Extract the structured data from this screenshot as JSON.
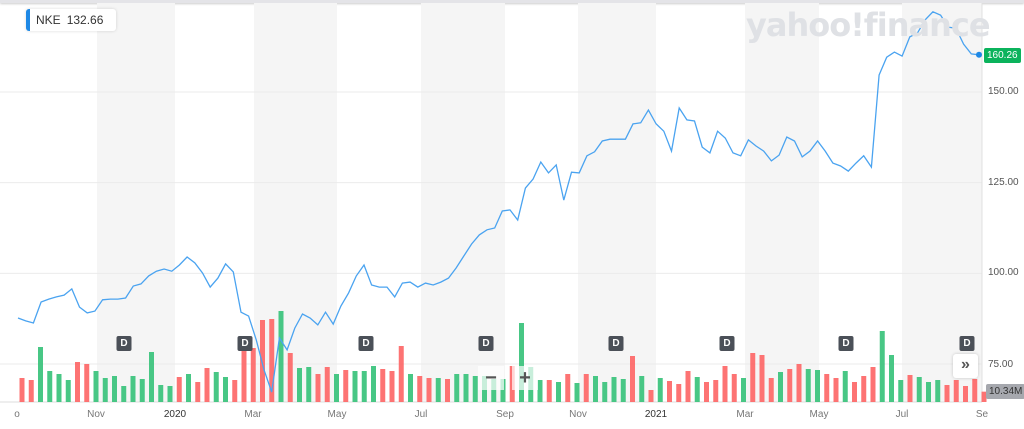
{
  "legend": {
    "symbol": "NKE",
    "value": "132.66",
    "color": "#1e88e5"
  },
  "logo": "yahoo!finance",
  "last_price_tag": "160.26",
  "volume_tag": "10.34M",
  "colors": {
    "line": "#4aa3f0",
    "up": "#3ec47e",
    "down": "#fd6b6b",
    "price_tag": "#0bb35c",
    "band": "#f5f5f5"
  },
  "y_axis": {
    "ticks": [
      "150.00",
      "125.00",
      "100.00",
      "75.00"
    ],
    "tick_values": [
      150,
      125,
      100,
      75
    ]
  },
  "x_axis": {
    "ticks": [
      {
        "label": "o",
        "year": false
      },
      {
        "label": "Nov",
        "year": false
      },
      {
        "label": "2020",
        "year": true
      },
      {
        "label": "Mar",
        "year": false
      },
      {
        "label": "May",
        "year": false
      },
      {
        "label": "Jul",
        "year": false
      },
      {
        "label": "Sep",
        "year": false
      },
      {
        "label": "Nov",
        "year": false
      },
      {
        "label": "2021",
        "year": true
      },
      {
        "label": "Mar",
        "year": false
      },
      {
        "label": "May",
        "year": false
      },
      {
        "label": "Jul",
        "year": false
      },
      {
        "label": "Se",
        "year": false
      }
    ]
  },
  "dividend_marker": "D",
  "dividend_count": 8,
  "controls": {
    "zoom_out": "−",
    "zoom_in": "+",
    "next": "»"
  },
  "chart_data": {
    "type": "line",
    "symbol": "NKE",
    "price": [
      87.7,
      86.9,
      86.3,
      92.1,
      92.9,
      93.5,
      94.0,
      95.7,
      90.7,
      89.1,
      89.6,
      92.7,
      92.9,
      92.9,
      93.2,
      96.5,
      97.1,
      99.3,
      100.6,
      101.2,
      100.6,
      102.3,
      104.5,
      102.9,
      100.1,
      96.2,
      98.7,
      102.6,
      100.4,
      89.3,
      88.2,
      81.6,
      73.4,
      67.3,
      82.2,
      78.9,
      84.9,
      88.8,
      87.7,
      85.8,
      89.3,
      86.0,
      91.0,
      94.6,
      99.3,
      102.3,
      96.8,
      96.2,
      96.2,
      93.5,
      97.3,
      97.6,
      96.2,
      97.3,
      96.8,
      97.6,
      98.7,
      101.5,
      104.8,
      108.1,
      110.6,
      112.0,
      112.5,
      117.2,
      117.5,
      114.7,
      123.5,
      126.0,
      130.7,
      127.7,
      129.9,
      120.2,
      127.9,
      127.7,
      132.4,
      133.5,
      136.5,
      137.0,
      137.0,
      137.0,
      141.2,
      141.5,
      145.0,
      141.2,
      139.2,
      133.7,
      145.6,
      142.3,
      142.0,
      134.8,
      133.2,
      139.2,
      137.3,
      133.2,
      132.4,
      136.8,
      135.1,
      133.7,
      131.0,
      132.6,
      137.6,
      136.5,
      132.1,
      133.7,
      136.5,
      133.7,
      130.4,
      129.6,
      128.2,
      130.4,
      132.4,
      129.3,
      154.7,
      159.6,
      161.0,
      159.9,
      165.2,
      166.3,
      169.9,
      172.1,
      171.2,
      167.9,
      167.6,
      163.2,
      160.5,
      160.26
    ],
    "volume_m": [
      24,
      22,
      55,
      31,
      28,
      22,
      40,
      38,
      31,
      24,
      26,
      16,
      26,
      23,
      50,
      17,
      16,
      25,
      28,
      20,
      34,
      30,
      25,
      22,
      52,
      54,
      82,
      83,
      91,
      49,
      34,
      35,
      28,
      35,
      28,
      32,
      31,
      31,
      36,
      33,
      31,
      56,
      28,
      26,
      24,
      24,
      23,
      28,
      28,
      26,
      26,
      23,
      23,
      36,
      79,
      35,
      22,
      22,
      20,
      28,
      19,
      28,
      26,
      20,
      25,
      23,
      46,
      26,
      12,
      24,
      21,
      18,
      31,
      25,
      20,
      22,
      36,
      28,
      24,
      49,
      47,
      24,
      30,
      33,
      38,
      33,
      32,
      28,
      24,
      31,
      20,
      26,
      35,
      71,
      47,
      22,
      27,
      25,
      20,
      22,
      17,
      22,
      16,
      23,
      10.34
    ],
    "volume_dir": "rrggggrrgggggggggrgrrggrrrrrgrggrrgrgggrrrgrrgrggggggrgggrgrgrggggrgrgrrrgrrrrgrrrgrrggrrgrrrgggrgggrrrrr",
    "ylim": [
      62,
      176
    ],
    "grid": true
  }
}
